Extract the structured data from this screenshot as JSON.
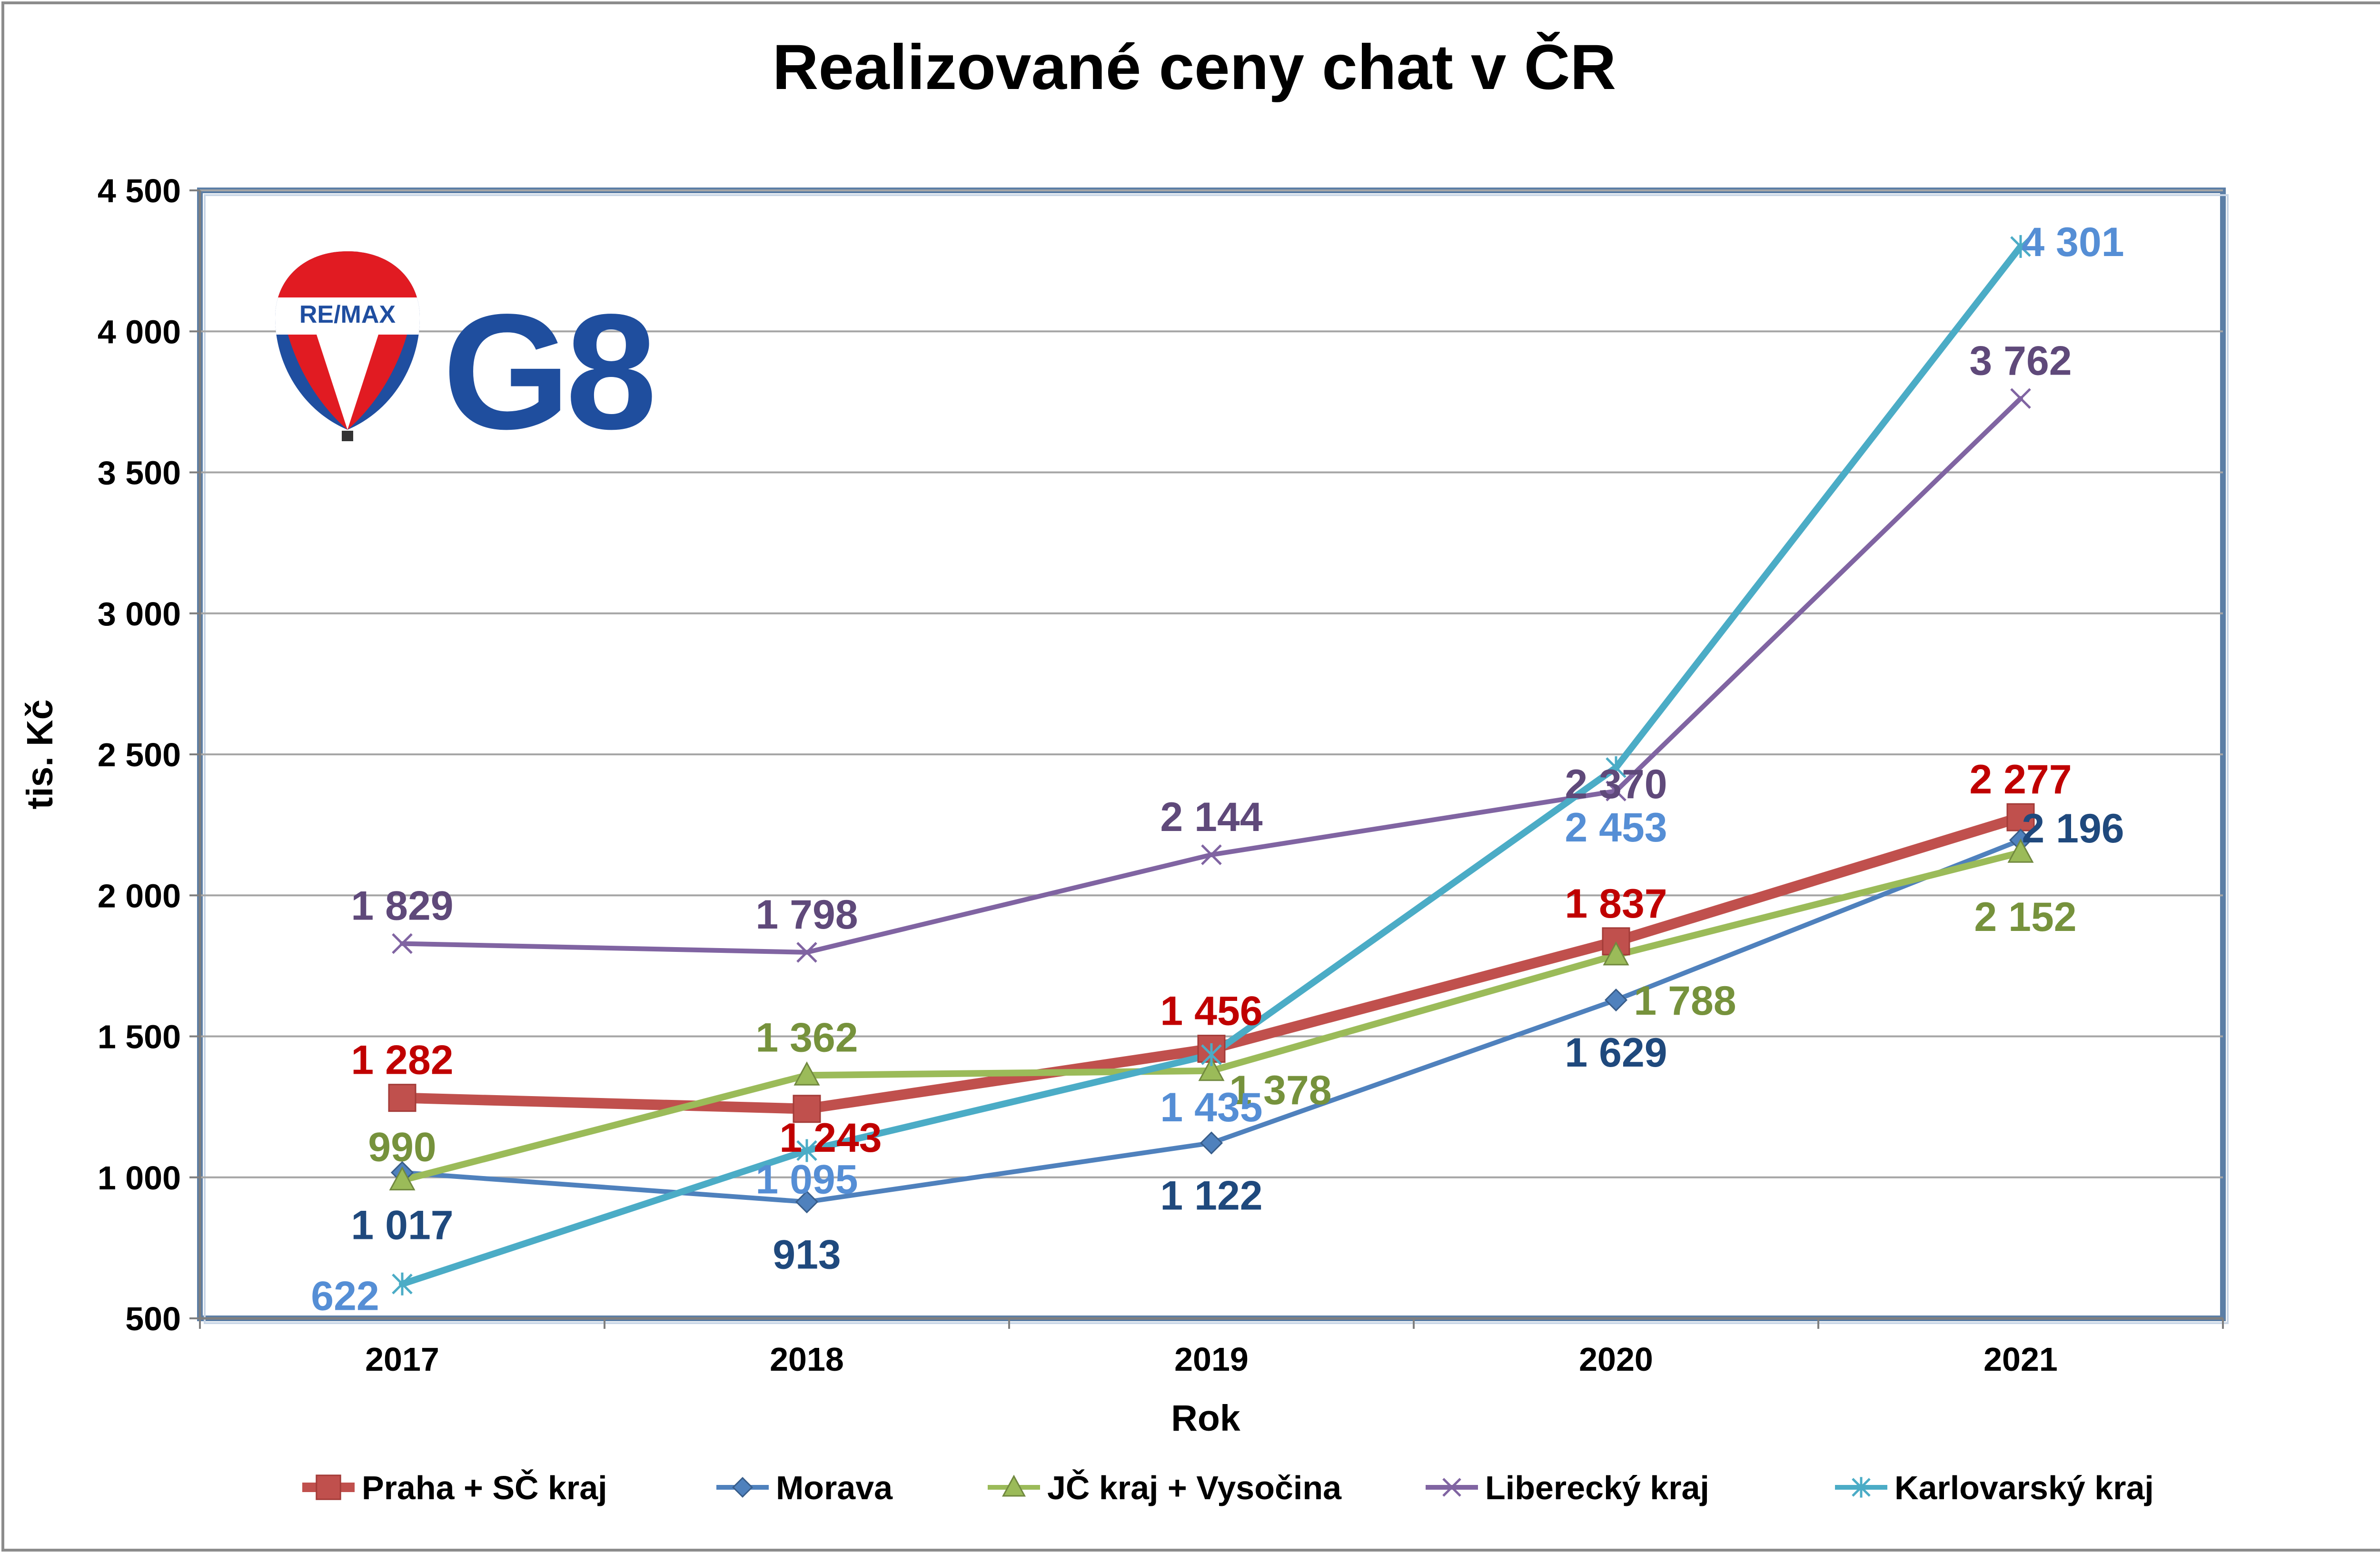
{
  "chart_data": {
    "type": "line",
    "title": "Realizované ceny chat v ČR",
    "xlabel": "Rok",
    "ylabel": "tis. Kč",
    "categories": [
      "2017",
      "2018",
      "2019",
      "2020",
      "2021"
    ],
    "ylim": [
      500,
      4500
    ],
    "yticks": [
      "500",
      "1 000",
      "1 500",
      "2 000",
      "2 500",
      "3 000",
      "3 500",
      "4 000",
      "4 500"
    ],
    "grid": true,
    "legend_position": "bottom",
    "series": [
      {
        "name": "Praha + SČ kraj",
        "color": "#c0504d",
        "label_color": "#c00000",
        "marker": "square",
        "values": [
          1282,
          1243,
          1456,
          1837,
          2277
        ],
        "labels": [
          "1 282",
          "1 243",
          "1 456",
          "1 837",
          "2 277"
        ]
      },
      {
        "name": "Morava",
        "color": "#4f81bd",
        "label_color": "#1f497d",
        "marker": "diamond",
        "values": [
          1017,
          913,
          1122,
          1629,
          2196
        ],
        "labels": [
          "1 017",
          "913",
          "1 122",
          "1 629",
          "2 196"
        ]
      },
      {
        "name": "JČ kraj + Vysočina",
        "color": "#9bbb59",
        "label_color": "#76923c",
        "marker": "triangle",
        "values": [
          990,
          1362,
          1378,
          1788,
          2152
        ],
        "labels": [
          "990",
          "1 362",
          "1 378",
          "1 788",
          "2 152"
        ]
      },
      {
        "name": "Liberecký kraj",
        "color": "#8064a2",
        "label_color": "#5f497a",
        "marker": "x",
        "values": [
          1829,
          1798,
          2144,
          2370,
          3762
        ],
        "labels": [
          "1 829",
          "1 798",
          "2 144",
          "2 370",
          "3 762"
        ]
      },
      {
        "name": "Karlovarský kraj",
        "color": "#4bacc6",
        "label_color": "#558ed5",
        "marker": "star",
        "values": [
          622,
          1095,
          1435,
          2453,
          4301
        ],
        "labels": [
          "622",
          "1 095",
          "1 435",
          "2 453",
          "4 301"
        ]
      }
    ]
  },
  "logo": {
    "balloon_text": "RE/MAX",
    "brand_text": "G8",
    "brand_color": "#1f4e9e"
  }
}
